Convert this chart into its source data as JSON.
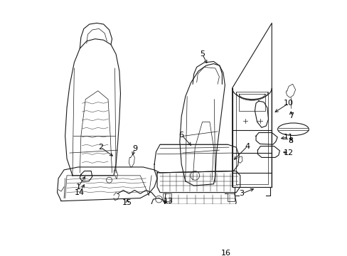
{
  "background_color": "#ffffff",
  "fig_width": 4.89,
  "fig_height": 3.6,
  "dpi": 100,
  "line_color": "#1a1a1a",
  "label_fontsize": 8,
  "label_color": "#000000"
}
